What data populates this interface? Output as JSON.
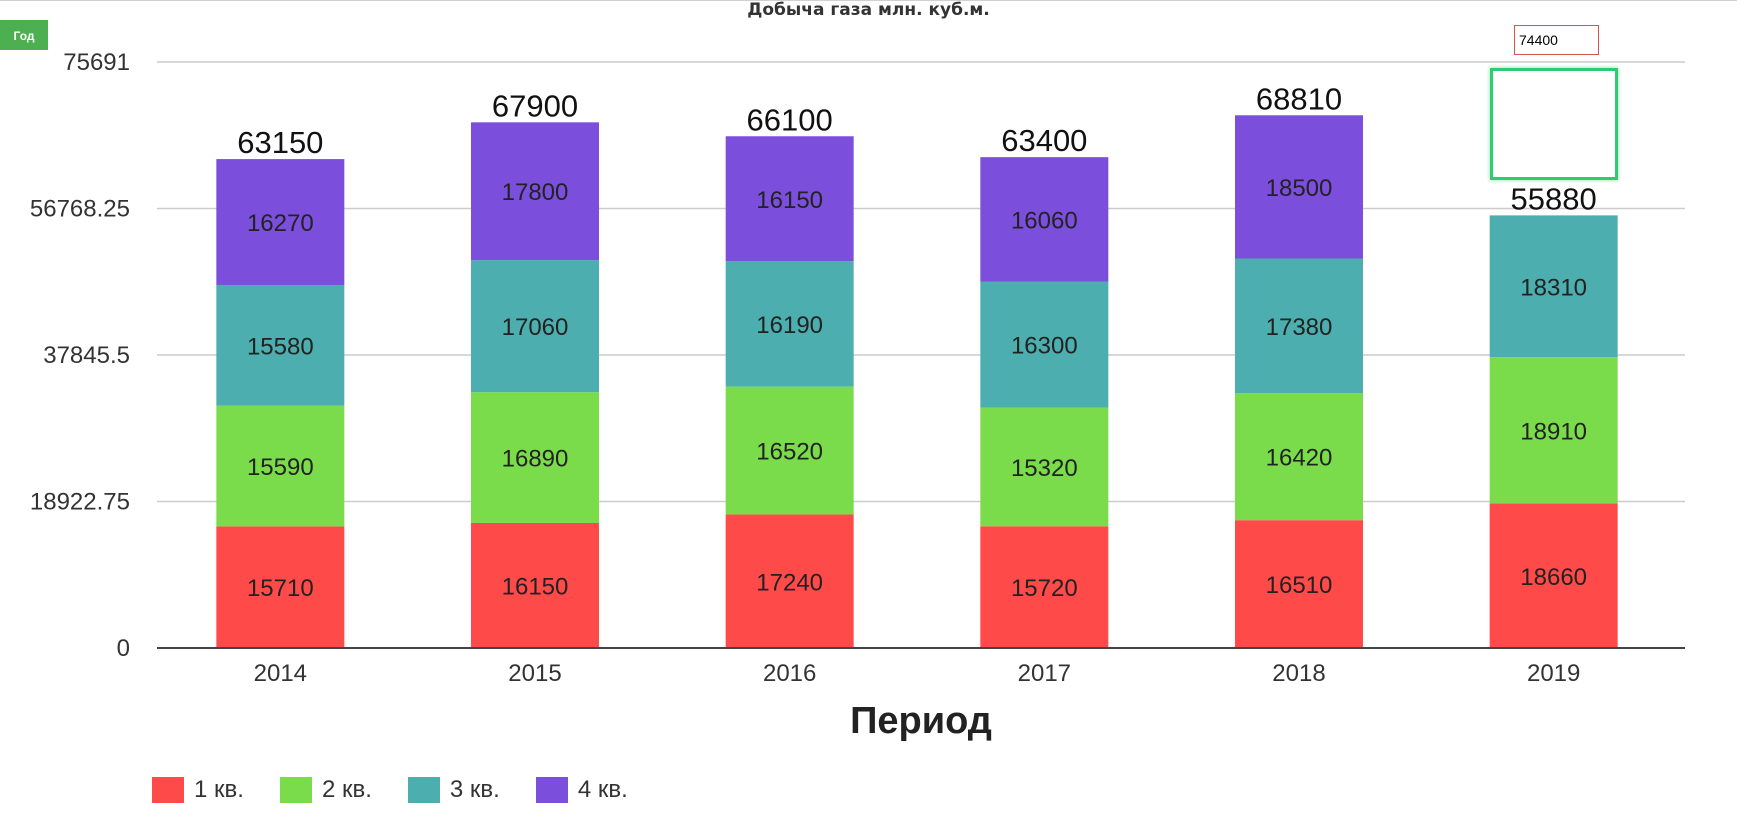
{
  "header": {
    "year_button_label": "Год"
  },
  "edit": {
    "input_value": "74400"
  },
  "colors": {
    "q1": "#ff4a4a",
    "q2": "#7bdc4b",
    "q3": "#4caeae",
    "q4": "#7b4fdc"
  },
  "chart_data": {
    "type": "bar",
    "stacked": true,
    "title": "Добыча газа млн. куб.м.",
    "xlabel": "Период",
    "ylabel": "",
    "ylim": [
      0,
      75691
    ],
    "yticks": [
      "75691",
      "56768.25",
      "37845.5",
      "18922.75",
      "0"
    ],
    "grid": true,
    "legend_position": "bottom-left",
    "categories": [
      "2014",
      "2015",
      "2016",
      "2017",
      "2018",
      "2019"
    ],
    "totals": [
      "63150",
      "67900",
      "66100",
      "63400",
      "68810",
      "55880"
    ],
    "series": [
      {
        "name": "1 кв.",
        "values": [
          15710,
          16150,
          17240,
          15720,
          16510,
          18660
        ]
      },
      {
        "name": "2 кв.",
        "values": [
          15590,
          16890,
          16520,
          15320,
          16420,
          18910
        ]
      },
      {
        "name": "3 кв.",
        "values": [
          15580,
          17060,
          16190,
          16300,
          17380,
          18310
        ]
      },
      {
        "name": "4 кв.",
        "values": [
          16270,
          17800,
          16150,
          16060,
          18500,
          null
        ]
      }
    ]
  }
}
